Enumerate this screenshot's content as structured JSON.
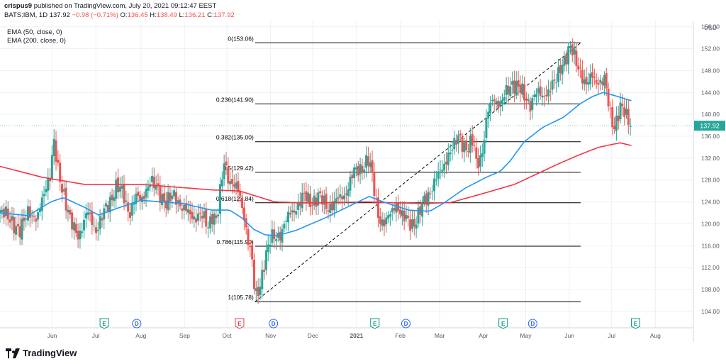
{
  "header": {
    "author": "crispus9",
    "published_text": "published on TradingView.com, July 20, 2021 09:12:47 EEST",
    "symbol": "BATS:IBM, 1D",
    "last": "137.92",
    "change": "−0.98 (−0.71%)",
    "o_label": "O:",
    "o_value": "136.45",
    "h_label": "H:",
    "h_value": "138.49",
    "l_label": "L:",
    "l_value": "136.21",
    "c_label": "C:",
    "c_value": "137.92"
  },
  "indicators": {
    "ema50": "EMA (50, close, 0)",
    "ema200": "EMA (200, close, 0)"
  },
  "branding": {
    "logo_text": "TradingView"
  },
  "colors": {
    "up": "#26a69a",
    "down": "#ef5350",
    "ema50": "#2196f3",
    "ema200": "#f23645",
    "fib": "#000000",
    "grid": "#eef0f3",
    "axis_text": "#555b66"
  },
  "chart_data": {
    "type": "candlestick",
    "symbol": "BATS:IBM",
    "interval": "1D",
    "currency": "USD",
    "ylim": [
      101,
      157
    ],
    "y_ticks": [
      104,
      108,
      112,
      116,
      120,
      124,
      128,
      132,
      136,
      140,
      144,
      148,
      152,
      156
    ],
    "x_start": "2021-05-10-prev",
    "x_labels": [
      {
        "label": "Jun",
        "day": 37
      },
      {
        "label": "Jul",
        "day": 68
      },
      {
        "label": "Aug",
        "day": 100
      },
      {
        "label": "Sep",
        "day": 131
      },
      {
        "label": "Oct",
        "day": 161
      },
      {
        "label": "Nov",
        "day": 192
      },
      {
        "label": "Dec",
        "day": 222
      },
      {
        "label": "2021",
        "day": 253
      },
      {
        "label": "Feb",
        "day": 284
      },
      {
        "label": "Mar",
        "day": 312
      },
      {
        "label": "Apr",
        "day": 343
      },
      {
        "label": "May",
        "day": 373
      },
      {
        "label": "Jun",
        "day": 404
      },
      {
        "label": "Jul",
        "day": 434
      },
      {
        "label": "Aug",
        "day": 465
      }
    ],
    "x_range_days": [
      0,
      492
    ],
    "last_day": 448,
    "current_price": 137.92,
    "price_keypoints": [
      [
        0,
        122
      ],
      [
        8,
        121
      ],
      [
        14,
        118
      ],
      [
        20,
        123
      ],
      [
        26,
        120
      ],
      [
        32,
        127
      ],
      [
        36,
        129
      ],
      [
        38,
        135
      ],
      [
        41,
        130
      ],
      [
        45,
        126
      ],
      [
        50,
        120
      ],
      [
        56,
        118
      ],
      [
        62,
        122
      ],
      [
        68,
        119
      ],
      [
        72,
        121
      ],
      [
        78,
        124
      ],
      [
        82,
        127
      ],
      [
        86,
        126
      ],
      [
        92,
        122
      ],
      [
        96,
        125
      ],
      [
        100,
        124
      ],
      [
        106,
        128
      ],
      [
        112,
        126
      ],
      [
        118,
        124
      ],
      [
        124,
        125
      ],
      [
        130,
        123
      ],
      [
        136,
        121
      ],
      [
        142,
        122
      ],
      [
        148,
        119
      ],
      [
        150,
        122
      ],
      [
        154,
        121
      ],
      [
        159,
        131
      ],
      [
        163,
        128
      ],
      [
        167,
        127
      ],
      [
        171,
        124
      ],
      [
        175,
        119
      ],
      [
        179,
        113
      ],
      [
        181,
        106
      ],
      [
        184,
        108
      ],
      [
        188,
        114
      ],
      [
        192,
        117
      ],
      [
        198,
        118
      ],
      [
        204,
        121
      ],
      [
        210,
        123
      ],
      [
        215,
        125
      ],
      [
        220,
        124
      ],
      [
        226,
        125
      ],
      [
        232,
        123
      ],
      [
        238,
        124
      ],
      [
        244,
        125
      ],
      [
        250,
        129
      ],
      [
        256,
        130
      ],
      [
        261,
        132
      ],
      [
        263,
        130
      ],
      [
        268,
        122
      ],
      [
        272,
        120
      ],
      [
        276,
        121
      ],
      [
        281,
        124
      ],
      [
        286,
        121
      ],
      [
        292,
        120
      ],
      [
        296,
        121
      ],
      [
        301,
        124
      ],
      [
        305,
        126
      ],
      [
        309,
        128
      ],
      [
        314,
        130
      ],
      [
        318,
        133
      ],
      [
        322,
        134
      ],
      [
        326,
        136
      ],
      [
        330,
        134
      ],
      [
        333,
        134
      ],
      [
        336,
        135
      ],
      [
        338,
        131
      ],
      [
        342,
        133
      ],
      [
        346,
        140
      ],
      [
        350,
        143
      ],
      [
        355,
        142
      ],
      [
        360,
        144
      ],
      [
        364,
        146
      ],
      [
        368,
        145
      ],
      [
        372,
        143
      ],
      [
        376,
        142
      ],
      [
        380,
        144
      ],
      [
        385,
        143
      ],
      [
        390,
        145
      ],
      [
        395,
        146
      ],
      [
        398,
        149
      ],
      [
        402,
        151
      ],
      [
        405,
        152
      ],
      [
        408,
        150
      ],
      [
        412,
        148
      ],
      [
        416,
        145
      ],
      [
        420,
        147
      ],
      [
        425,
        146
      ],
      [
        429,
        146
      ],
      [
        431,
        143
      ],
      [
        433,
        140
      ],
      [
        436,
        138
      ],
      [
        440,
        141
      ],
      [
        444,
        140
      ],
      [
        448,
        137.92
      ]
    ],
    "ema50_keypoints": [
      [
        0,
        122
      ],
      [
        20,
        121.5
      ],
      [
        36,
        124
      ],
      [
        45,
        124.8
      ],
      [
        60,
        123
      ],
      [
        70,
        121.6
      ],
      [
        85,
        123
      ],
      [
        100,
        124.3
      ],
      [
        130,
        123.7
      ],
      [
        150,
        122.5
      ],
      [
        163,
        122.5
      ],
      [
        172,
        121
      ],
      [
        180,
        119
      ],
      [
        188,
        118
      ],
      [
        196,
        117.8
      ],
      [
        210,
        118.8
      ],
      [
        230,
        121
      ],
      [
        250,
        123.5
      ],
      [
        262,
        125
      ],
      [
        272,
        124
      ],
      [
        290,
        122.5
      ],
      [
        305,
        122.3
      ],
      [
        315,
        123.8
      ],
      [
        330,
        126.5
      ],
      [
        345,
        128.5
      ],
      [
        355,
        129.6
      ],
      [
        362,
        131.5
      ],
      [
        372,
        135
      ],
      [
        385,
        137.6
      ],
      [
        400,
        139.5
      ],
      [
        412,
        142
      ],
      [
        420,
        143.2
      ],
      [
        428,
        144
      ],
      [
        435,
        143.5
      ],
      [
        448,
        142.5
      ]
    ],
    "ema200_keypoints": [
      [
        0,
        130.5
      ],
      [
        30,
        128.5
      ],
      [
        60,
        127.2
      ],
      [
        100,
        127.2
      ],
      [
        150,
        126.2
      ],
      [
        170,
        126
      ],
      [
        185,
        124.8
      ],
      [
        195,
        124
      ],
      [
        220,
        123.8
      ],
      [
        260,
        124
      ],
      [
        300,
        123.7
      ],
      [
        320,
        123.9
      ],
      [
        345,
        125.7
      ],
      [
        365,
        127.2
      ],
      [
        380,
        129
      ],
      [
        395,
        130.8
      ],
      [
        410,
        132.5
      ],
      [
        425,
        134
      ],
      [
        440,
        134.8
      ],
      [
        448,
        134.3
      ]
    ],
    "fibonacci": {
      "start_day": 181,
      "end_day": 412,
      "line_end_day": 412,
      "high": 153.06,
      "low": 105.78,
      "levels": [
        {
          "label": "0(153.06)",
          "value": 153.06
        },
        {
          "label": "0.236(141.90)",
          "value": 141.9
        },
        {
          "label": "0.382(135.00)",
          "value": 135.0
        },
        {
          "label": "0.5(129.42)",
          "value": 129.42
        },
        {
          "label": "0.618(123.84)",
          "value": 123.84
        },
        {
          "label": "0.786(115.90)",
          "value": 115.9
        },
        {
          "label": "1(105.78)",
          "value": 105.78
        }
      ]
    },
    "events": [
      {
        "type": "E",
        "day": 74,
        "color": "#089981"
      },
      {
        "type": "D",
        "day": 97,
        "color": "#2962ff"
      },
      {
        "type": "E",
        "day": 170,
        "color": "#f23645"
      },
      {
        "type": "D",
        "day": 194,
        "color": "#2962ff"
      },
      {
        "type": "E",
        "day": 266,
        "color": "#089981"
      },
      {
        "type": "D",
        "day": 288,
        "color": "#2962ff"
      },
      {
        "type": "E",
        "day": 357,
        "color": "#089981"
      },
      {
        "type": "D",
        "day": 378,
        "color": "#2962ff"
      },
      {
        "type": "E",
        "day": 451,
        "color": "#089981"
      }
    ]
  }
}
